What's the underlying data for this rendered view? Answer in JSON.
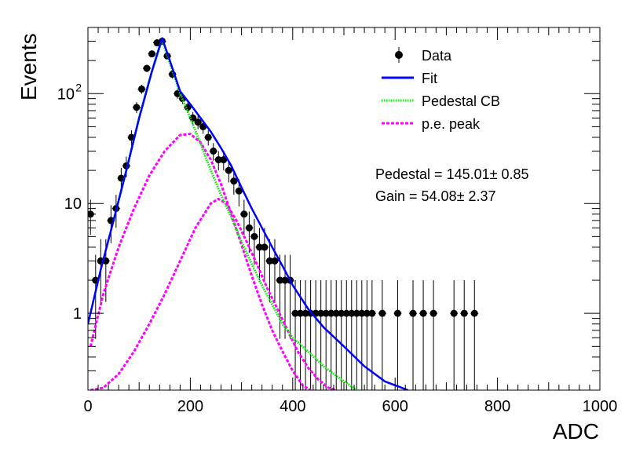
{
  "chart_data": {
    "type": "scatter",
    "xlabel": "ADC",
    "ylabel": "Events",
    "xlim": [
      0,
      1000
    ],
    "ylim": [
      0.2,
      400
    ],
    "yscale": "log",
    "x_ticks": [
      0,
      200,
      400,
      600,
      800,
      1000
    ],
    "y_ticks": [
      {
        "value": 1,
        "label": "1"
      },
      {
        "value": 10,
        "label": "10"
      },
      {
        "value": 100,
        "label": "10",
        "exponent": "2"
      }
    ],
    "grid": false,
    "legend_position": "top-right",
    "legend": [
      {
        "label": "Data",
        "series": "data",
        "style": "marker",
        "color": "#000000"
      },
      {
        "label": "Fit",
        "series": "fit",
        "style": "solid",
        "color": "#0000ff"
      },
      {
        "label": "Pedestal CB",
        "series": "pedestal",
        "style": "dotted",
        "color": "#00ff00"
      },
      {
        "label": "p.e. peak",
        "series": "pe",
        "style": "dashed",
        "color": "#ff00ff"
      }
    ],
    "annotations": [
      "Pedestal = 145.01± 0.85",
      "Gain = 54.08± 2.37"
    ],
    "data": {
      "x": [
        5,
        15,
        25,
        35,
        45,
        55,
        65,
        75,
        85,
        95,
        105,
        115,
        125,
        135,
        145,
        155,
        165,
        175,
        185,
        195,
        205,
        215,
        225,
        235,
        245,
        255,
        265,
        275,
        285,
        295,
        305,
        315,
        325,
        335,
        345,
        355,
        365,
        375,
        385,
        395,
        405,
        415,
        425,
        435,
        445,
        455,
        465,
        475,
        485,
        495,
        505,
        515,
        525,
        535,
        545,
        555,
        575,
        605,
        635,
        655,
        675,
        715,
        735,
        755
      ],
      "y": [
        8,
        2,
        3,
        3,
        7,
        9,
        17,
        22,
        40,
        75,
        110,
        170,
        230,
        290,
        300,
        220,
        150,
        100,
        90,
        75,
        60,
        55,
        50,
        40,
        30,
        25,
        25,
        20,
        16,
        13,
        8,
        6,
        5,
        4,
        4,
        3,
        3,
        2,
        2,
        2,
        1,
        1,
        1,
        1,
        1,
        1,
        1,
        1,
        1,
        1,
        1,
        1,
        1,
        1,
        1,
        1,
        1,
        1,
        1,
        1,
        1,
        1,
        1,
        1
      ]
    },
    "series": [
      {
        "id": "fit",
        "x": [
          0,
          25,
          50,
          75,
          100,
          125,
          145,
          160,
          180,
          200,
          220,
          240,
          260,
          280,
          300,
          320,
          340,
          360,
          380,
          400,
          430,
          460,
          500,
          540,
          580,
          625
        ],
        "y": [
          0.8,
          2.5,
          7,
          20,
          60,
          160,
          320,
          200,
          105,
          80,
          60,
          45,
          32,
          22,
          14,
          9,
          6,
          4,
          2.7,
          1.8,
          1.1,
          0.75,
          0.5,
          0.33,
          0.24,
          0.2
        ]
      },
      {
        "id": "pedestal",
        "x": [
          50,
          75,
          100,
          125,
          145,
          160,
          180,
          200,
          220,
          240,
          260,
          280,
          300,
          320,
          340,
          360,
          380,
          400,
          430,
          460,
          490,
          525
        ],
        "y": [
          7,
          20,
          60,
          160,
          310,
          190,
          100,
          60,
          35,
          20,
          12,
          7.5,
          4.5,
          2.8,
          1.8,
          1.2,
          0.8,
          0.6,
          0.45,
          0.33,
          0.26,
          0.2
        ]
      },
      {
        "id": "pe1",
        "x": [
          5,
          30,
          60,
          90,
          120,
          150,
          180,
          200,
          220,
          240,
          260,
          280,
          300,
          320,
          340,
          360,
          380,
          400,
          420,
          435
        ],
        "y": [
          0.5,
          1.5,
          4,
          9,
          18,
          30,
          42,
          43,
          36,
          25,
          15,
          8,
          4.2,
          2.2,
          1.2,
          0.7,
          0.45,
          0.3,
          0.22,
          0.2
        ]
      },
      {
        "id": "pe2",
        "x": [
          5,
          30,
          60,
          90,
          120,
          150,
          180,
          210,
          240,
          255,
          270,
          290,
          310,
          330,
          350,
          370,
          390,
          410,
          430,
          450,
          470,
          485
        ],
        "y": [
          0.2,
          0.21,
          0.28,
          0.45,
          0.8,
          1.5,
          3,
          6,
          10,
          11,
          10,
          7,
          4.5,
          2.8,
          1.7,
          1.1,
          0.7,
          0.45,
          0.32,
          0.25,
          0.21,
          0.2
        ]
      }
    ]
  }
}
